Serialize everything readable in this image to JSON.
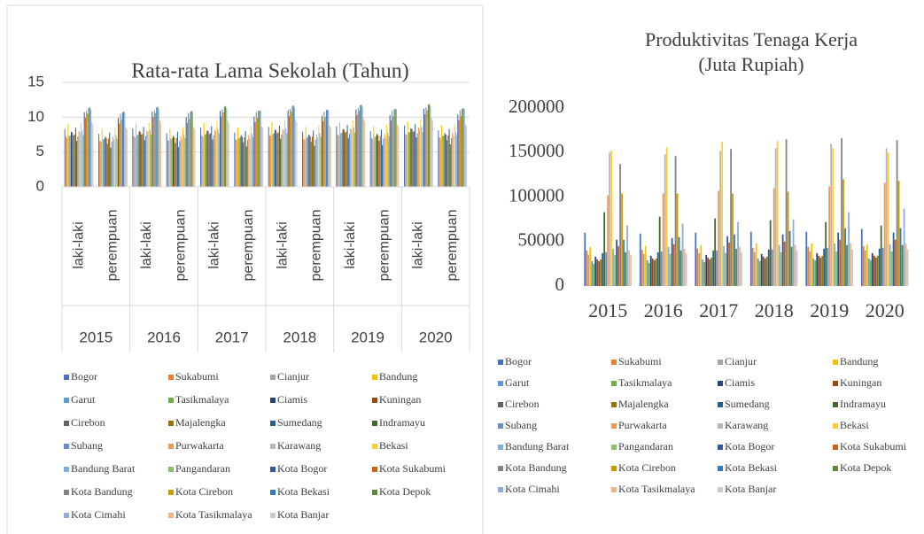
{
  "chart_data": [
    {
      "type": "bar",
      "title": "Rata-rata Lama Sekolah (Tahun)",
      "categories": [
        "laki-laki",
        "perempuan",
        "laki-laki",
        "perempuan",
        "laki-laki",
        "perempuan",
        "laki-laki",
        "perempuan",
        "laki-laki",
        "perempuan",
        "laki-laki",
        "perempuan"
      ],
      "groups": [
        "2015",
        "2016",
        "2017",
        "2018",
        "2019",
        "2020"
      ],
      "ylim": [
        0,
        15
      ],
      "yticks": [
        0,
        5,
        10,
        15
      ],
      "grid": true,
      "series": [
        {
          "name": "Bogor",
          "color": "#4472c4",
          "values": [
            8.3,
            7.6,
            8.4,
            7.7,
            8.5,
            7.8,
            8.6,
            7.9,
            8.7,
            8.0,
            8.8,
            8.1
          ]
        },
        {
          "name": "Sukabumi",
          "color": "#ed7d31",
          "values": [
            7.2,
            6.6,
            7.3,
            6.7,
            7.4,
            6.8,
            7.4,
            6.9,
            7.5,
            7.0,
            7.6,
            7.1
          ]
        },
        {
          "name": "Cianjur",
          "color": "#a5a5a5",
          "values": [
            7.0,
            6.5,
            7.1,
            6.6,
            7.2,
            6.7,
            7.3,
            6.8,
            7.4,
            6.9,
            7.5,
            7.0
          ]
        },
        {
          "name": "Bandung",
          "color": "#ffc000",
          "values": [
            9.0,
            8.3,
            9.1,
            8.4,
            9.2,
            8.5,
            9.3,
            8.6,
            9.3,
            8.7,
            9.4,
            8.8
          ]
        },
        {
          "name": "Garut",
          "color": "#5b9bd5",
          "values": [
            7.3,
            6.8,
            7.4,
            6.9,
            7.5,
            7.0,
            7.6,
            7.1,
            7.7,
            7.2,
            7.8,
            7.3
          ]
        },
        {
          "name": "Tasikmalaya",
          "color": "#70ad47",
          "values": [
            7.4,
            6.9,
            7.5,
            7.0,
            7.6,
            7.1,
            7.7,
            7.2,
            7.8,
            7.3,
            7.9,
            7.4
          ]
        },
        {
          "name": "Ciamis",
          "color": "#264478",
          "values": [
            7.9,
            7.2,
            8.0,
            7.3,
            8.1,
            7.4,
            8.2,
            7.5,
            8.3,
            7.6,
            8.4,
            7.7
          ]
        },
        {
          "name": "Kuningan",
          "color": "#9e480e",
          "values": [
            7.8,
            7.0,
            7.9,
            7.1,
            8.0,
            7.2,
            8.1,
            7.3,
            8.2,
            7.4,
            8.3,
            7.5
          ]
        },
        {
          "name": "Cirebon",
          "color": "#636363",
          "values": [
            7.4,
            6.2,
            7.5,
            6.3,
            7.6,
            6.4,
            7.7,
            6.5,
            7.8,
            6.6,
            7.9,
            6.7
          ]
        },
        {
          "name": "Majalengka",
          "color": "#997300",
          "values": [
            7.5,
            6.9,
            7.6,
            7.0,
            7.7,
            7.1,
            7.8,
            7.2,
            7.9,
            7.3,
            8.0,
            7.4
          ]
        },
        {
          "name": "Sumedang",
          "color": "#255e91",
          "values": [
            8.5,
            7.8,
            8.6,
            7.9,
            8.7,
            8.0,
            8.8,
            8.1,
            8.9,
            8.2,
            9.0,
            8.3
          ]
        },
        {
          "name": "Indramayu",
          "color": "#43682b",
          "values": [
            6.6,
            5.6,
            6.7,
            5.7,
            6.8,
            5.8,
            6.9,
            5.9,
            7.0,
            6.0,
            7.1,
            6.1
          ]
        },
        {
          "name": "Subang",
          "color": "#698ed0",
          "values": [
            7.2,
            6.5,
            7.3,
            6.6,
            7.4,
            6.7,
            7.5,
            6.8,
            7.6,
            6.9,
            7.7,
            7.0
          ]
        },
        {
          "name": "Purwakarta",
          "color": "#f1975a",
          "values": [
            8.0,
            7.2,
            8.1,
            7.3,
            8.2,
            7.4,
            8.3,
            7.5,
            8.4,
            7.6,
            8.5,
            7.7
          ]
        },
        {
          "name": "Karawang",
          "color": "#b7b7b7",
          "values": [
            7.8,
            6.8,
            7.9,
            6.9,
            8.0,
            7.0,
            8.1,
            7.1,
            8.2,
            7.2,
            8.3,
            7.3
          ]
        },
        {
          "name": "Bekasi",
          "color": "#ffcd33",
          "values": [
            9.2,
            8.5,
            9.3,
            8.6,
            9.4,
            8.7,
            9.5,
            8.8,
            9.6,
            8.9,
            9.7,
            9.0
          ]
        },
        {
          "name": "Bandung Barat",
          "color": "#7cafdd",
          "values": [
            8.1,
            7.4,
            8.2,
            7.5,
            8.3,
            7.6,
            8.4,
            7.7,
            8.5,
            7.8,
            8.6,
            7.9
          ]
        },
        {
          "name": "Pangandaran",
          "color": "#8cc168",
          "values": [
            7.4,
            6.9,
            7.5,
            7.0,
            7.6,
            7.1,
            7.7,
            7.2,
            7.8,
            7.3,
            7.9,
            7.4
          ]
        },
        {
          "name": "Kota Bogor",
          "color": "#335aa1",
          "values": [
            10.7,
            9.9,
            10.8,
            10.0,
            10.9,
            10.1,
            11.0,
            10.2,
            11.1,
            10.3,
            11.2,
            10.4
          ]
        },
        {
          "name": "Kota Sukabumi",
          "color": "#d26012",
          "values": [
            9.9,
            9.1,
            10.0,
            9.2,
            10.1,
            9.3,
            10.2,
            9.4,
            10.3,
            9.5,
            10.4,
            9.6
          ]
        },
        {
          "name": "Kota Bandung",
          "color": "#848484",
          "values": [
            10.9,
            10.5,
            11.0,
            10.6,
            11.1,
            10.7,
            11.2,
            10.8,
            11.3,
            10.9,
            11.4,
            11.0
          ]
        },
        {
          "name": "Kota Cirebon",
          "color": "#cc9a00",
          "values": [
            10.5,
            9.7,
            10.6,
            9.8,
            10.7,
            9.9,
            10.8,
            10.0,
            10.9,
            10.1,
            11.0,
            10.2
          ]
        },
        {
          "name": "Kota Bekasi",
          "color": "#327dc2",
          "values": [
            11.3,
            10.7,
            11.4,
            10.8,
            11.5,
            10.9,
            11.6,
            11.0,
            11.7,
            11.1,
            11.8,
            11.2
          ]
        },
        {
          "name": "Kota Depok",
          "color": "#5a8a39",
          "values": [
            11.4,
            10.8,
            11.5,
            10.9,
            11.6,
            11.0,
            11.7,
            11.1,
            11.8,
            11.2,
            11.9,
            11.3
          ]
        },
        {
          "name": "Kota Cimahi",
          "color": "#8faadc",
          "values": [
            11.1,
            10.7,
            11.2,
            10.8,
            11.3,
            10.9,
            11.4,
            11.0,
            11.5,
            11.1,
            11.6,
            11.2
          ]
        },
        {
          "name": "Kota Tasikmalaya",
          "color": "#f4b183",
          "values": [
            9.4,
            8.5,
            9.5,
            8.6,
            9.6,
            8.7,
            9.7,
            8.8,
            9.8,
            8.9,
            9.9,
            9.0
          ]
        },
        {
          "name": "Kota Banjar",
          "color": "#c9c9c9",
          "values": [
            9.0,
            8.3,
            9.1,
            8.4,
            9.2,
            8.5,
            9.3,
            8.6,
            9.4,
            8.7,
            9.5,
            8.8
          ]
        }
      ]
    },
    {
      "type": "bar",
      "title": [
        "Produktivitas Tenaga Kerja",
        "(Juta Rupiah)"
      ],
      "categories": [
        "2015",
        "2016",
        "2017",
        "2018",
        "2019",
        "2020"
      ],
      "ylim": [
        0,
        200000
      ],
      "yticks": [
        0,
        50000,
        100000,
        150000,
        200000
      ],
      "grid": false,
      "series": [
        {
          "name": "Bogor",
          "color": "#4472c4",
          "values": [
            60000,
            59000,
            60000,
            61000,
            61000,
            64000
          ]
        },
        {
          "name": "Sukabumi",
          "color": "#ed7d31",
          "values": [
            40000,
            41000,
            42000,
            43000,
            44000,
            45000
          ]
        },
        {
          "name": "Cianjur",
          "color": "#a5a5a5",
          "values": [
            35000,
            36000,
            37000,
            38000,
            39000,
            40000
          ]
        },
        {
          "name": "Bandung",
          "color": "#ffc000",
          "values": [
            44000,
            45000,
            46000,
            48000,
            48000,
            47000
          ]
        },
        {
          "name": "Garut",
          "color": "#5b9bd5",
          "values": [
            28000,
            29000,
            30000,
            31000,
            31000,
            31000
          ]
        },
        {
          "name": "Tasikmalaya",
          "color": "#70ad47",
          "values": [
            25000,
            26000,
            27000,
            28000,
            29000,
            29000
          ]
        },
        {
          "name": "Ciamis",
          "color": "#264478",
          "values": [
            33000,
            34000,
            35000,
            36000,
            37000,
            37000
          ]
        },
        {
          "name": "Kuningan",
          "color": "#9e480e",
          "values": [
            30000,
            31000,
            32000,
            33000,
            34000,
            34000
          ]
        },
        {
          "name": "Cirebon",
          "color": "#636363",
          "values": [
            28000,
            29000,
            30000,
            31000,
            32000,
            32000
          ]
        },
        {
          "name": "Majalengka",
          "color": "#997300",
          "values": [
            30000,
            31000,
            32000,
            33000,
            34000,
            34000
          ]
        },
        {
          "name": "Sumedang",
          "color": "#255e91",
          "values": [
            37000,
            38000,
            40000,
            41000,
            42000,
            42000
          ]
        },
        {
          "name": "Indramayu",
          "color": "#43682b",
          "values": [
            83000,
            78000,
            76000,
            74000,
            72000,
            68000
          ]
        },
        {
          "name": "Subang",
          "color": "#698ed0",
          "values": [
            38000,
            39000,
            40000,
            41000,
            43000,
            43000
          ]
        },
        {
          "name": "Purwakarta",
          "color": "#f1975a",
          "values": [
            102000,
            104000,
            107000,
            110000,
            112000,
            116000
          ]
        },
        {
          "name": "Karawang",
          "color": "#b7b7b7",
          "values": [
            150000,
            148000,
            152000,
            155000,
            160000,
            155000
          ]
        },
        {
          "name": "Bekasi",
          "color": "#ffcd33",
          "values": [
            152000,
            156000,
            162000,
            163000,
            155000,
            150000
          ]
        },
        {
          "name": "Bandung Barat",
          "color": "#7cafdd",
          "values": [
            42000,
            44000,
            45000,
            46000,
            48000,
            47000
          ]
        },
        {
          "name": "Pangandaran",
          "color": "#8cc168",
          "values": [
            35000,
            36000,
            37000,
            38000,
            39000,
            39000
          ]
        },
        {
          "name": "Kota Bogor",
          "color": "#335aa1",
          "values": [
            52000,
            54000,
            56000,
            58000,
            60000,
            60000
          ]
        },
        {
          "name": "Kota Sukabumi",
          "color": "#d26012",
          "values": [
            45000,
            47000,
            49000,
            50000,
            52000,
            52000
          ]
        },
        {
          "name": "Kota Bandung",
          "color": "#848484",
          "values": [
            137000,
            146000,
            154000,
            165000,
            166000,
            164000
          ]
        },
        {
          "name": "Kota Cirebon",
          "color": "#cc9a00",
          "values": [
            104000,
            104000,
            104000,
            106000,
            120000,
            118000
          ]
        },
        {
          "name": "Kota Bekasi",
          "color": "#327dc2",
          "values": [
            52000,
            55000,
            58000,
            62000,
            65000,
            65000
          ]
        },
        {
          "name": "Kota Depok",
          "color": "#5a8a39",
          "values": [
            38000,
            40000,
            42000,
            44000,
            46000,
            46000
          ]
        },
        {
          "name": "Kota Cimahi",
          "color": "#8faadc",
          "values": [
            68000,
            70000,
            72000,
            75000,
            83000,
            87000
          ]
        },
        {
          "name": "Kota Tasikmalaya",
          "color": "#f4b183",
          "values": [
            40000,
            42000,
            44000,
            46000,
            48000,
            48000
          ]
        },
        {
          "name": "Kota Banjar",
          "color": "#c9c9c9",
          "values": [
            35000,
            37000,
            38000,
            40000,
            41000,
            41000
          ]
        }
      ]
    }
  ]
}
